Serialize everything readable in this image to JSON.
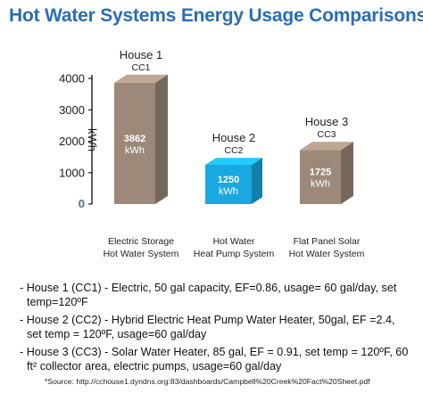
{
  "chart_data": {
    "type": "bar",
    "title": "Hot Water Systems Energy Usage Comparisons",
    "ylabel": "kWh",
    "ylim": [
      0,
      4000
    ],
    "yticks": [
      0,
      1000,
      2000,
      3000,
      4000
    ],
    "grid": false,
    "style": "3d-box",
    "categories": [
      "Electric Storage Hot Water System",
      "Hot Water Heat Pump System",
      "Flat Panel Solar Hot Water System"
    ],
    "bars": [
      {
        "house": "House 1",
        "code": "CC1",
        "value": 3862,
        "value_label": "3862",
        "unit": "kWh",
        "category_line1": "Electric Storage",
        "category_line2": "Hot Water System",
        "color": "#9c8979"
      },
      {
        "house": "House 2",
        "code": "CC2",
        "value": 1250,
        "value_label": "1250",
        "unit": "kWh",
        "category_line1": "Hot Water",
        "category_line2": "Heat Pump System",
        "color": "#19a8e0"
      },
      {
        "house": "House 3",
        "code": "CC3",
        "value": 1725,
        "value_label": "1725",
        "unit": "kWh",
        "category_line1": "Flat Panel Solar",
        "category_line2": "Hot Water System",
        "color": "#9c8979"
      }
    ]
  },
  "notes": [
    "- House 1 (CC1) - Electric, 50 gal capacity, EF=0.86, usage= 60 gal/day, set temp=120ºF",
    "- House 2 (CC2) - Hybrid Electric Heat Pump Water Heater, 50gal, EF =2.4, set temp = 120ºF, usage=60 gal/day",
    "- House 3 (CC3) - Solar Water Heater, 85 gal, EF = 0.91, set temp = 120ºF, 60 ft² collector area, electric pumps, usage=60 gal/day"
  ],
  "source": "*Source: http://cchouse1.dyndns.org:83/dashboards/Campbell%20Creek%20Fact%20Sheet.pdf",
  "colors": {
    "title": "#2a6db4",
    "axis": "#1a1a1a"
  }
}
